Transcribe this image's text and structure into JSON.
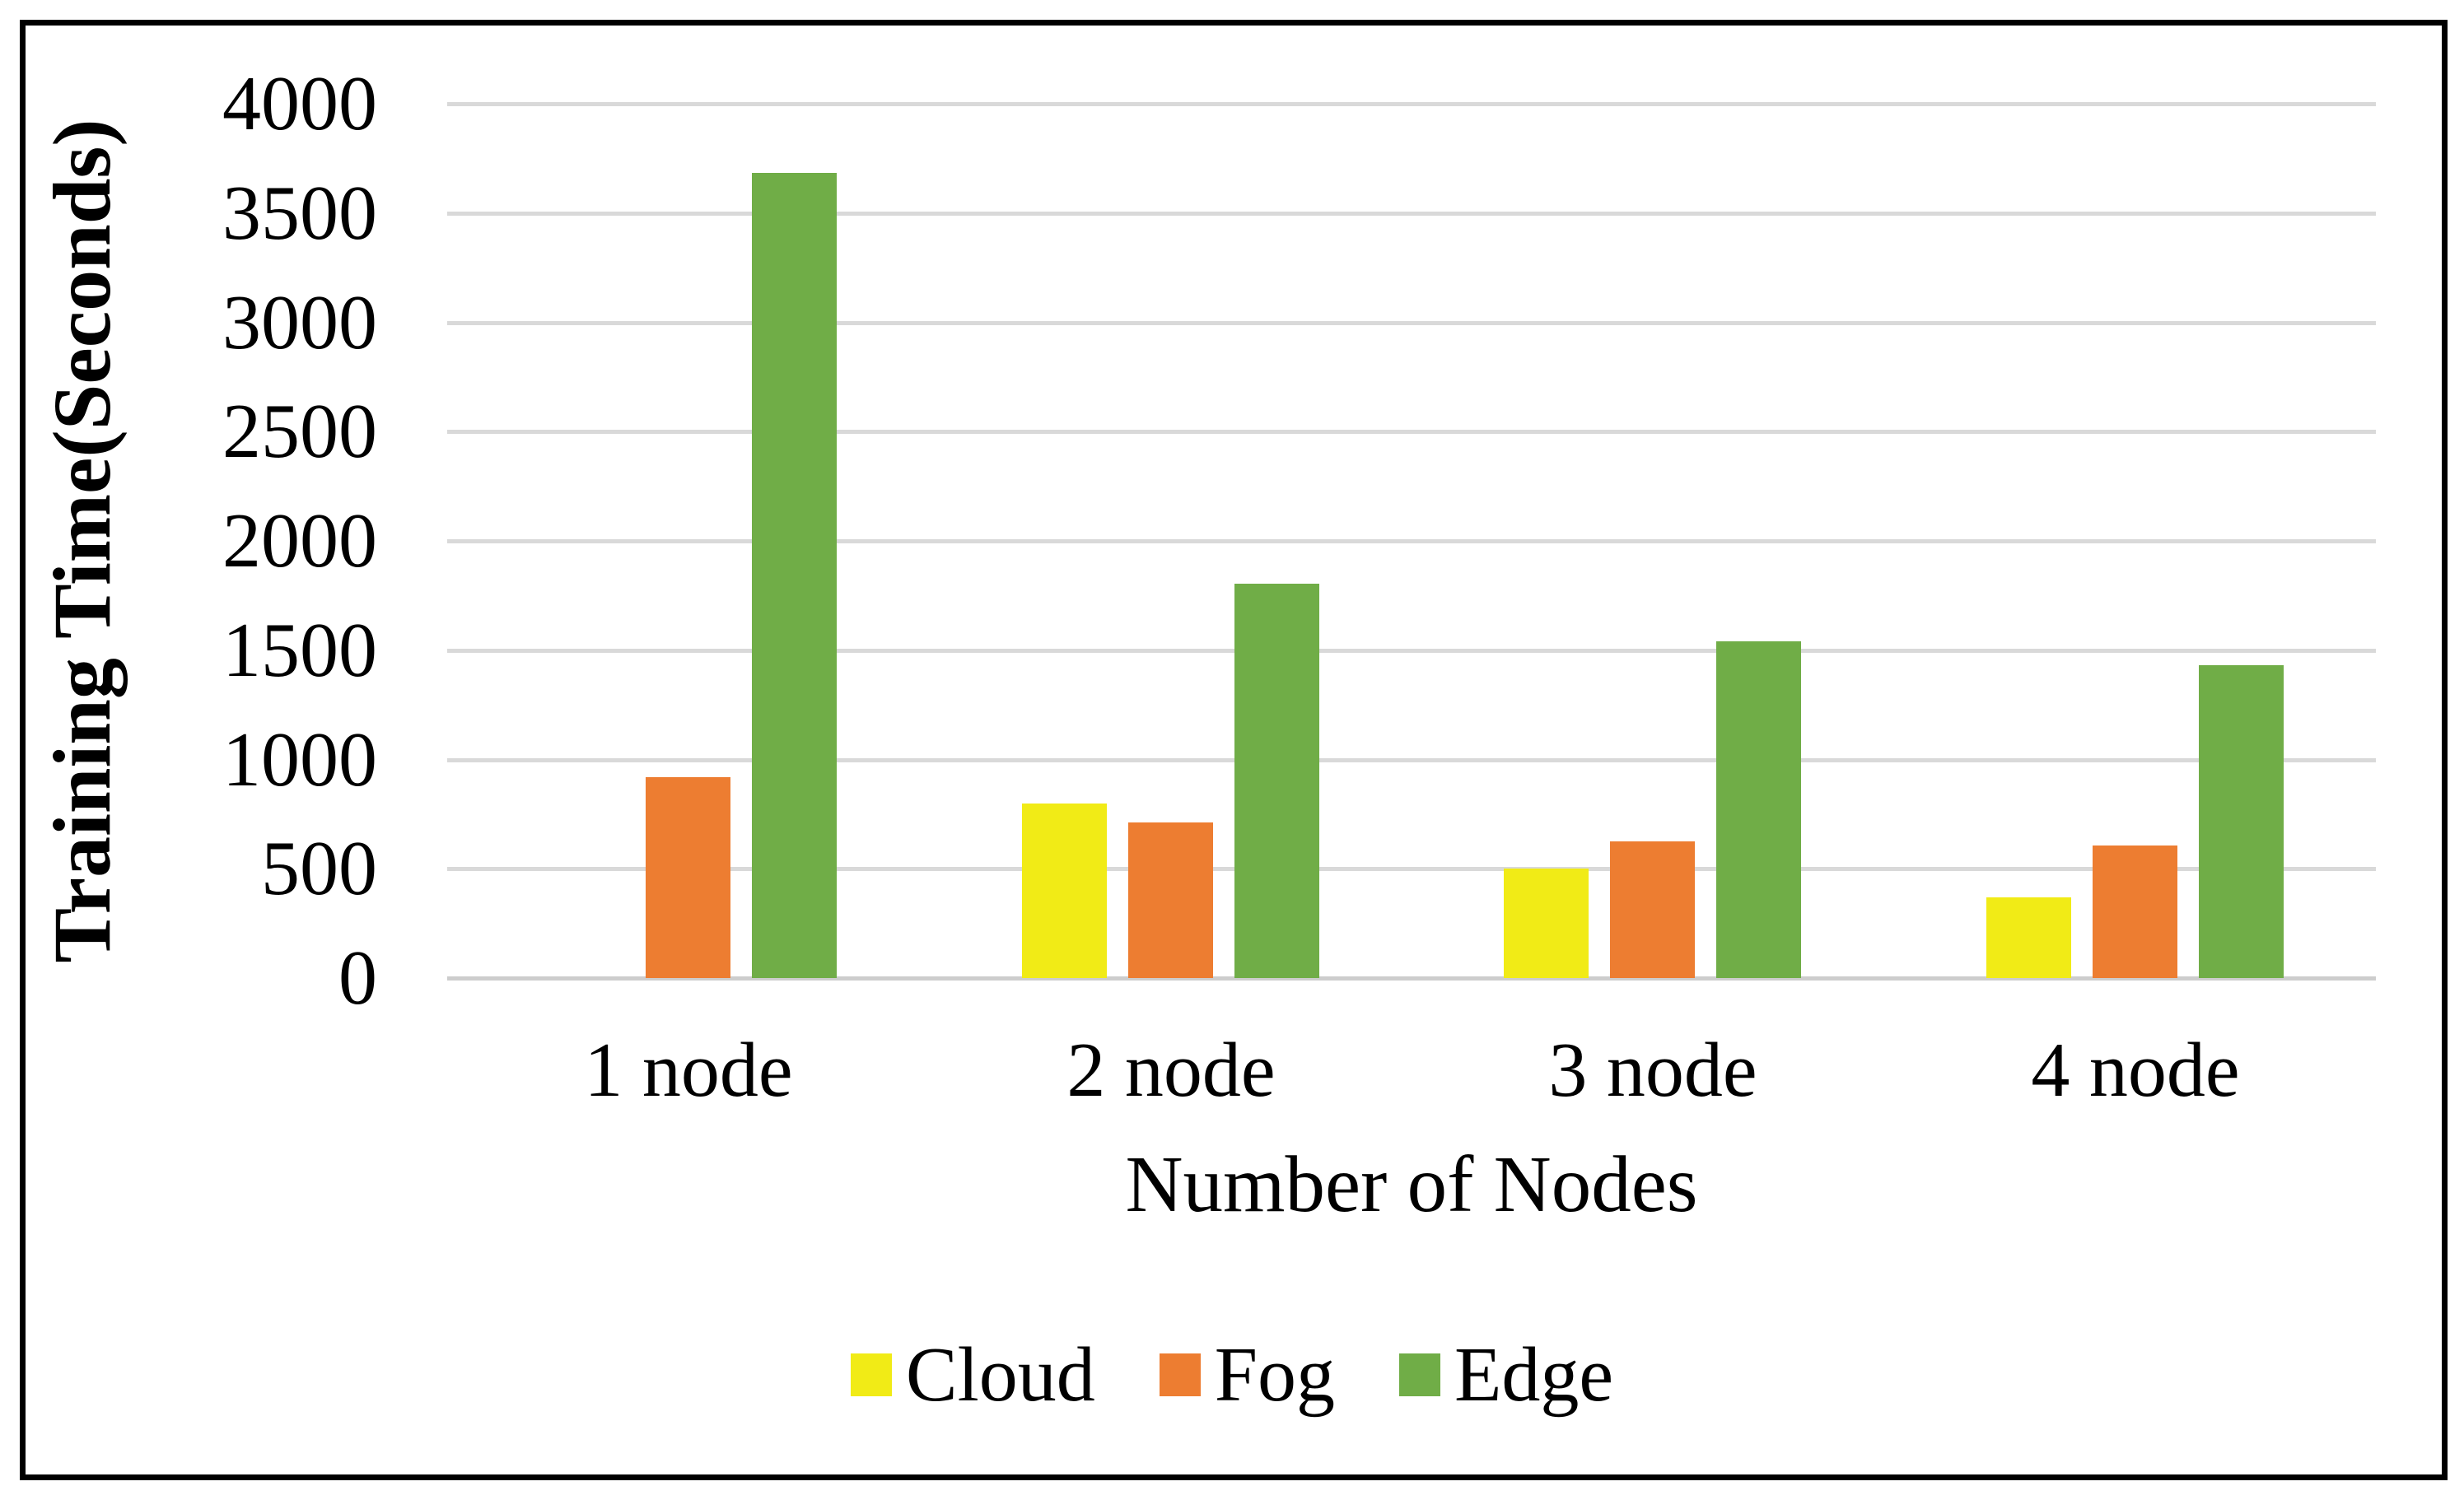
{
  "figure": {
    "y_axis_title": "Training Time(Seconds)",
    "x_axis_title": "Number of Nodes"
  },
  "chart_data": {
    "type": "bar",
    "title": "",
    "categories": [
      "1 node",
      "2 node",
      "3 node",
      "4 node"
    ],
    "series": [
      {
        "name": "Cloud",
        "color": "#F1EB16",
        "values": [
          0,
          800,
          500,
          370
        ]
      },
      {
        "name": "Fog",
        "color": "#ED7D31",
        "values": [
          920,
          710,
          625,
          605
        ]
      },
      {
        "name": "Edge",
        "color": "#70AD47",
        "values": [
          3685,
          1805,
          1540,
          1430
        ]
      }
    ],
    "xlabel": "Number of Nodes",
    "ylabel": "Training Time(Seconds)",
    "ylim": [
      0,
      4000
    ],
    "ytick_step": 500,
    "yticks": [
      0,
      500,
      1000,
      1500,
      2000,
      2500,
      3000,
      3500,
      4000
    ],
    "grid": true,
    "legend_position": "bottom",
    "colors": {
      "grid": "#D9D9D9",
      "axis": "#CDCDCD",
      "figure_border": "#000000",
      "background": "#FFFFFF"
    }
  }
}
